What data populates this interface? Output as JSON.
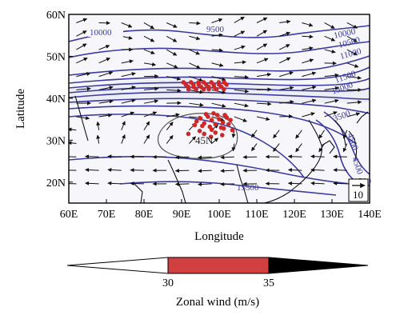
{
  "map": {
    "x_ticks": [
      "60E",
      "70E",
      "80E",
      "90E",
      "100E",
      "110E",
      "120E",
      "130E",
      "140E"
    ],
    "y_ticks": [
      "20N",
      "30N",
      "40N",
      "50N",
      "60N"
    ],
    "x_label": "Longitude",
    "y_label": "Latitude",
    "lon_range": [
      60,
      140
    ],
    "lat_range": [
      15,
      60
    ],
    "contour_labels": [
      "10000",
      "9500",
      "10000",
      "10500",
      "11000",
      "11500",
      "13000",
      "3500",
      "4500",
      "4500",
      "45N",
      "1500",
      "15500"
    ],
    "reference_vector_label": "10",
    "colors": {
      "contour": "#3a3aa0",
      "contour_center": "#555555",
      "points": "#d02828",
      "wind_band": "#d9534f",
      "coast": "#111111",
      "background": "#f7f7fb"
    }
  },
  "colorbar": {
    "tick_labels": [
      "30",
      "35"
    ],
    "title": "Zonal wind (m/s)",
    "segments": [
      "white",
      "red",
      "black"
    ],
    "colors": {
      "low": "#ffffff",
      "mid": "#d04040",
      "high": "#000000"
    }
  }
}
